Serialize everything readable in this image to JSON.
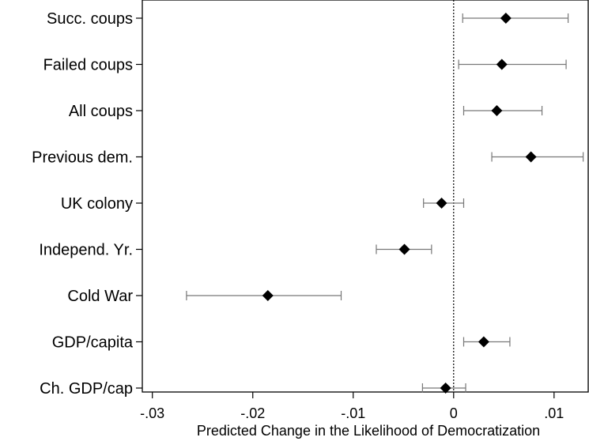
{
  "chart_data": {
    "type": "scatter",
    "subtype": "coefficient-plot-with-confidence-intervals",
    "orientation": "horizontal",
    "xlabel": "Predicted Change in the Likelihood of Democratization",
    "ylabel": "",
    "title": "",
    "xlim": [
      -0.031,
      0.0134
    ],
    "xticks": [
      -0.03,
      -0.02,
      -0.01,
      0,
      0.01
    ],
    "xtick_labels": [
      "-.03",
      "-.02",
      "-.01",
      "0",
      ".01"
    ],
    "reference_line": {
      "x": 0,
      "style": "dotted"
    },
    "marker": "diamond",
    "grid": false,
    "categories": [
      "Succ. coups",
      "Failed coups",
      "All coups",
      "Previous dem.",
      "UK colony",
      "Independ. Yr.",
      "Cold War",
      "GDP/capita",
      "Ch. GDP/cap"
    ],
    "estimates": [
      0.0052,
      0.0048,
      0.0043,
      0.0077,
      -0.0012,
      -0.0049,
      -0.0185,
      0.003,
      -0.0008
    ],
    "ci_low": [
      0.0009,
      0.0005,
      0.001,
      0.0038,
      -0.003,
      -0.0077,
      -0.0266,
      0.001,
      -0.0031
    ],
    "ci_high": [
      0.0114,
      0.0112,
      0.0088,
      0.0129,
      0.001,
      -0.0022,
      -0.0112,
      0.0056,
      0.0012
    ]
  }
}
